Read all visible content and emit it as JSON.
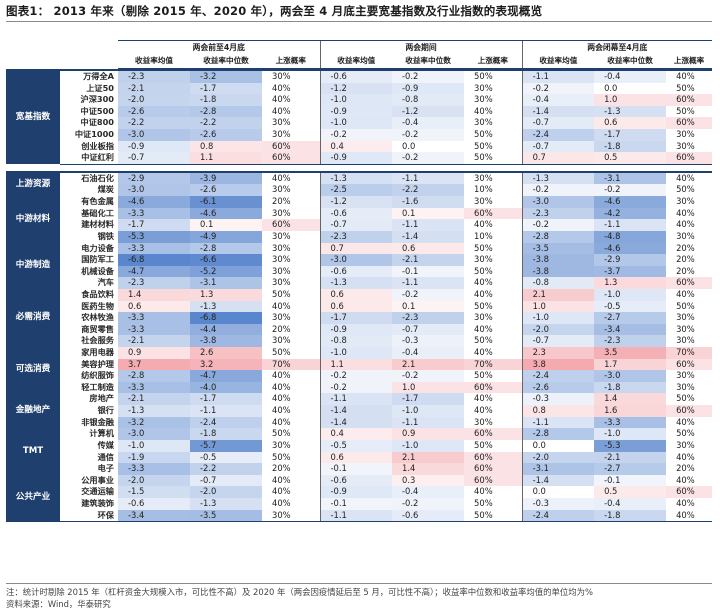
{
  "title": "图表1： 2013 年来（剔除 2015 年、2020 年），两会至 4 月底主要宽基指数及行业指数的表现概览",
  "period_headers": [
    "两会前至4月底",
    "两会期间",
    "两会闭幕至4月底"
  ],
  "column_headers": [
    "收益率均值",
    "收益率中位数",
    "上涨概率"
  ],
  "colors": {
    "section_bg": "#1f3f6e",
    "positive": "#e8525c",
    "negative": "#3a6fc4"
  },
  "footer": {
    "note": "注：统计时剔除 2015 年（杠杆资金大规模入市，可比性不高）及 2020 年（两会因疫情延后至 5 月，可比性不高）；收益率中位数和收益率均值的单位均为%",
    "source": "资料来源：Wind，华泰研究"
  },
  "tables": [
    {
      "sections": [
        {
          "label": "宽基指数",
          "rows": [
            {
              "name": "万得全A",
              "v": [
                "-2.3",
                "-3.2",
                "30%",
                "-0.6",
                "-0.2",
                "50%",
                "-1.1",
                "-0.4",
                "40%"
              ]
            },
            {
              "name": "上证50",
              "v": [
                "-2.1",
                "-1.7",
                "40%",
                "-1.2",
                "-0.9",
                "30%",
                "-0.2",
                "0.0",
                "50%"
              ]
            },
            {
              "name": "沪深300",
              "v": [
                "-2.0",
                "-1.8",
                "40%",
                "-1.0",
                "-0.8",
                "30%",
                "-0.4",
                "1.0",
                "60%"
              ]
            },
            {
              "name": "中证500",
              "v": [
                "-2.6",
                "-2.8",
                "40%",
                "-0.9",
                "-1.2",
                "40%",
                "-1.4",
                "-1.3",
                "50%"
              ]
            },
            {
              "name": "中证800",
              "v": [
                "-2.2",
                "-2.2",
                "30%",
                "-1.0",
                "-0.4",
                "30%",
                "-0.7",
                "0.6",
                "60%"
              ]
            },
            {
              "name": "中证1000",
              "v": [
                "-3.0",
                "-2.6",
                "30%",
                "-0.2",
                "-0.2",
                "50%",
                "-2.4",
                "-1.7",
                "30%"
              ]
            },
            {
              "name": "创业板指",
              "v": [
                "-0.9",
                "0.8",
                "60%",
                "0.4",
                "0.0",
                "50%",
                "-0.7",
                "-1.8",
                "30%"
              ]
            },
            {
              "name": "中证红利",
              "v": [
                "-0.7",
                "1.1",
                "60%",
                "-0.9",
                "-0.2",
                "50%",
                "0.7",
                "0.5",
                "60%"
              ]
            }
          ]
        }
      ]
    },
    {
      "sections": [
        {
          "label": "上游资源",
          "rows": [
            {
              "name": "石油石化",
              "v": [
                "-2.9",
                "-3.9",
                "40%",
                "-1.3",
                "-1.1",
                "30%",
                "-1.3",
                "-3.1",
                "40%"
              ]
            },
            {
              "name": "煤炭",
              "v": [
                "-3.0",
                "-2.6",
                "30%",
                "-2.5",
                "-2.2",
                "10%",
                "-0.2",
                "-0.2",
                "50%"
              ]
            }
          ]
        },
        {
          "label": "中游材料",
          "rows": [
            {
              "name": "有色金属",
              "v": [
                "-4.6",
                "-6.1",
                "20%",
                "-1.2",
                "-1.6",
                "30%",
                "-3.0",
                "-4.6",
                "30%"
              ]
            },
            {
              "name": "基础化工",
              "v": [
                "-3.3",
                "-4.6",
                "30%",
                "-0.6",
                "0.1",
                "60%",
                "-2.3",
                "-4.2",
                "40%"
              ]
            },
            {
              "name": "建材材料",
              "v": [
                "-1.7",
                "0.1",
                "60%",
                "-0.7",
                "-1.1",
                "40%",
                "-0.2",
                "-1.1",
                "40%"
              ]
            },
            {
              "name": "钢铁",
              "v": [
                "-5.3",
                "-4.9",
                "30%",
                "-2.3",
                "-1.4",
                "10%",
                "-2.8",
                "-4.8",
                "30%"
              ]
            }
          ]
        },
        {
          "label": "中游制造",
          "rows": [
            {
              "name": "电力设备",
              "v": [
                "-3.3",
                "-2.8",
                "30%",
                "0.7",
                "0.6",
                "50%",
                "-3.5",
                "-4.6",
                "20%"
              ]
            },
            {
              "name": "国防军工",
              "v": [
                "-6.8",
                "-6.6",
                "30%",
                "-3.0",
                "-2.1",
                "30%",
                "-3.8",
                "-2.9",
                "20%"
              ]
            },
            {
              "name": "机械设备",
              "v": [
                "-4.7",
                "-5.2",
                "30%",
                "-0.6",
                "-0.1",
                "50%",
                "-3.8",
                "-3.7",
                "20%"
              ]
            },
            {
              "name": "汽车",
              "v": [
                "-2.3",
                "-3.1",
                "30%",
                "-1.3",
                "-1.1",
                "40%",
                "-0.8",
                "1.3",
                "60%"
              ]
            }
          ]
        },
        {
          "label": "必需消费",
          "rows": [
            {
              "name": "食品饮料",
              "v": [
                "1.4",
                "1.3",
                "50%",
                "0.6",
                "-0.2",
                "40%",
                "2.1",
                "-1.0",
                "40%"
              ]
            },
            {
              "name": "医药生物",
              "v": [
                "0.6",
                "-1.3",
                "40%",
                "0.6",
                "0.1",
                "50%",
                "1.0",
                "-0.5",
                "50%"
              ]
            },
            {
              "name": "农林牧渔",
              "v": [
                "-3.3",
                "-6.8",
                "30%",
                "-1.7",
                "-2.3",
                "30%",
                "-1.0",
                "-2.7",
                "30%"
              ]
            },
            {
              "name": "商贸零售",
              "v": [
                "-3.3",
                "-4.4",
                "20%",
                "-0.9",
                "-0.7",
                "40%",
                "-2.0",
                "-3.4",
                "30%"
              ]
            },
            {
              "name": "社会服务",
              "v": [
                "-2.1",
                "-3.8",
                "30%",
                "-0.8",
                "-0.3",
                "50%",
                "-0.7",
                "-2.3",
                "30%"
              ]
            }
          ]
        },
        {
          "label": "可选消费",
          "rows": [
            {
              "name": "家用电器",
              "v": [
                "0.9",
                "2.6",
                "50%",
                "-1.0",
                "-0.4",
                "40%",
                "2.3",
                "3.5",
                "70%"
              ]
            },
            {
              "name": "美容护理",
              "v": [
                "3.7",
                "3.2",
                "70%",
                "1.1",
                "2.1",
                "70%",
                "3.8",
                "1.7",
                "60%"
              ]
            },
            {
              "name": "纺织服饰",
              "v": [
                "-2.8",
                "-4.7",
                "40%",
                "-0.2",
                "-0.2",
                "50%",
                "-2.4",
                "-3.0",
                "30%"
              ]
            },
            {
              "name": "轻工制造",
              "v": [
                "-3.3",
                "-4.0",
                "40%",
                "-0.2",
                "1.0",
                "60%",
                "-2.6",
                "-1.8",
                "30%"
              ]
            }
          ]
        },
        {
          "label": "金融地产",
          "rows": [
            {
              "name": "房地产",
              "v": [
                "-2.1",
                "-1.7",
                "40%",
                "-1.1",
                "-1.7",
                "40%",
                "-0.3",
                "1.4",
                "50%"
              ]
            },
            {
              "name": "银行",
              "v": [
                "-1.3",
                "-1.1",
                "40%",
                "-1.4",
                "-1.0",
                "40%",
                "0.8",
                "1.6",
                "60%"
              ]
            },
            {
              "name": "非银金融",
              "v": [
                "-3.2",
                "-2.4",
                "40%",
                "-1.4",
                "-1.1",
                "30%",
                "-1.1",
                "-3.3",
                "40%"
              ]
            }
          ]
        },
        {
          "label": "TMT",
          "rows": [
            {
              "name": "计算机",
              "v": [
                "-3.0",
                "-1.8",
                "50%",
                "0.4",
                "0.9",
                "60%",
                "-2.8",
                "-1.0",
                "50%"
              ]
            },
            {
              "name": "传媒",
              "v": [
                "-1.0",
                "-5.7",
                "30%",
                "-0.5",
                "-1.0",
                "50%",
                "0.0",
                "-5.3",
                "30%"
              ]
            },
            {
              "name": "通信",
              "v": [
                "-1.9",
                "-0.5",
                "50%",
                "0.6",
                "2.1",
                "60%",
                "-2.0",
                "-2.1",
                "40%"
              ]
            },
            {
              "name": "电子",
              "v": [
                "-3.3",
                "-2.2",
                "20%",
                "-0.1",
                "1.4",
                "60%",
                "-3.1",
                "-2.7",
                "20%"
              ]
            }
          ]
        },
        {
          "label": "公共产业",
          "rows": [
            {
              "name": "公用事业",
              "v": [
                "-2.0",
                "-0.7",
                "40%",
                "-0.6",
                "0.3",
                "60%",
                "-1.4",
                "-0.1",
                "40%"
              ]
            },
            {
              "name": "交通运输",
              "v": [
                "-1.5",
                "-2.0",
                "40%",
                "-0.9",
                "-0.4",
                "40%",
                "0.0",
                "0.5",
                "60%"
              ]
            },
            {
              "name": "建筑装饰",
              "v": [
                "-0.6",
                "-1.3",
                "40%",
                "-0.1",
                "-0.2",
                "50%",
                "-0.3",
                "-0.4",
                "40%"
              ]
            },
            {
              "name": "环保",
              "v": [
                "-3.4",
                "-3.5",
                "30%",
                "-1.1",
                "-0.6",
                "50%",
                "-2.4",
                "-1.8",
                "40%"
              ]
            }
          ]
        }
      ]
    }
  ]
}
